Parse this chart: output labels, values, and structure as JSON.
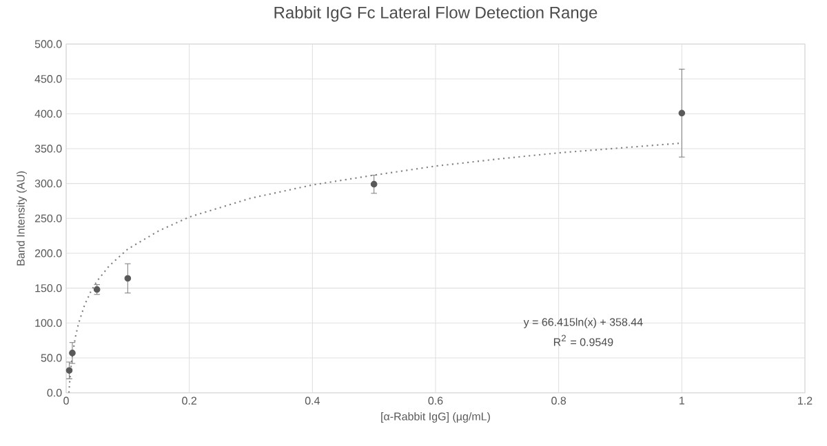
{
  "chart_data": {
    "type": "scatter",
    "title": "Rabbit IgG Fc Lateral Flow Detection Range",
    "xlabel": "[α-Rabbit IgG] (µg/mL)",
    "ylabel": "Band Intensity (AU)",
    "xlim": [
      0,
      1.2
    ],
    "xticks": [
      0,
      0.2,
      0.4,
      0.6,
      0.8,
      1,
      1.2
    ],
    "ylim": [
      0,
      500
    ],
    "yticks": [
      {
        "value": 0,
        "label": "0.0"
      },
      {
        "value": 50,
        "label": "50.0"
      },
      {
        "value": 100,
        "label": "100.0"
      },
      {
        "value": 150,
        "label": "150.0"
      },
      {
        "value": 200,
        "label": "200.0"
      },
      {
        "value": 250,
        "label": "250.0"
      },
      {
        "value": 300,
        "label": "300.0"
      },
      {
        "value": 350,
        "label": "350.0"
      },
      {
        "value": 400,
        "label": "400.0"
      },
      {
        "value": 450,
        "label": "450.0"
      },
      {
        "value": 500,
        "label": "500.0"
      }
    ],
    "grid": true,
    "annotations": [
      "y = 66.415ln(x) + 358.44",
      "R$^{2}$ = 0.9549"
    ],
    "series": [
      {
        "color": "#595959",
        "marker": "circle",
        "x": [
          0.005,
          0.01,
          0.05,
          0.1,
          0.5,
          1
        ],
        "values": [
          32,
          57,
          148,
          164,
          299,
          401
        ],
        "errors": [
          12,
          15,
          7,
          21,
          13,
          63
        ]
      },
      {
        "type": "line",
        "color": "#808080",
        "line_style": "dotted",
        "marker": "none",
        "x": [
          0.0045,
          0.006,
          0.008,
          0.01,
          0.015,
          0.02,
          0.03,
          0.04,
          0.05,
          0.07,
          0.1,
          0.15,
          0.2,
          0.3,
          0.4,
          0.5,
          0.6,
          0.7,
          0.8,
          0.9,
          1
        ],
        "values": [
          0,
          19,
          38,
          53,
          80,
          99,
          126,
          145,
          160,
          182,
          206,
          232,
          252,
          279,
          298,
          312,
          325,
          335,
          344,
          351,
          358
        ]
      }
    ]
  }
}
